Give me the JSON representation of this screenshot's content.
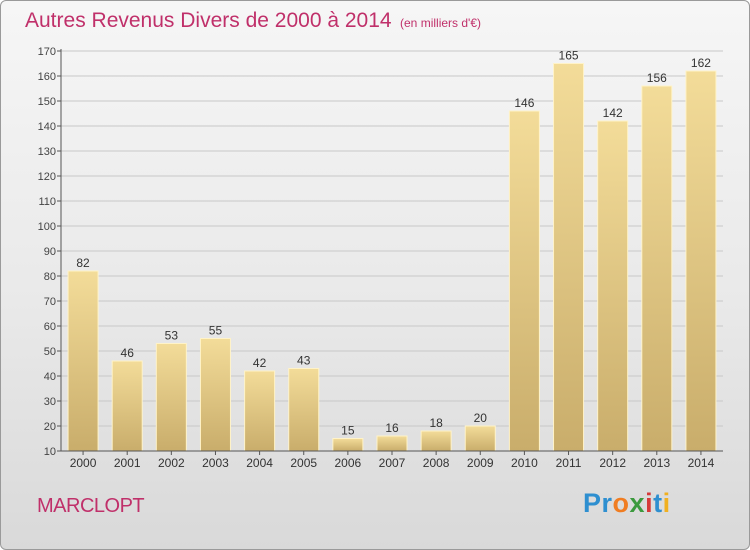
{
  "header": {
    "title": "Autres Revenus Divers de 2000 à 2014",
    "unit": "(en milliers d'€)"
  },
  "footer": {
    "city": "MARCLOPT",
    "brand_letters": [
      {
        "ch": "P",
        "color": "#2e8fd0"
      },
      {
        "ch": "r",
        "color": "#2e8fd0"
      },
      {
        "ch": "o",
        "color": "#f07d22"
      },
      {
        "ch": "x",
        "color": "#3c9a3e"
      },
      {
        "ch": "i",
        "color": "#d63a3a"
      },
      {
        "ch": "t",
        "color": "#2e8fd0"
      },
      {
        "ch": "i",
        "color": "#f0b020"
      }
    ]
  },
  "colors": {
    "title": "#c0306a",
    "bar_light": "#f3dc99",
    "bar_dark": "#c9ad6b",
    "grid": "#c8c8c8"
  },
  "chart_data": {
    "type": "bar",
    "title": "Autres Revenus Divers de 2000 à 2014",
    "subtitle": "(en milliers d'€)",
    "categories": [
      "2000",
      "2001",
      "2002",
      "2003",
      "2004",
      "2005",
      "2006",
      "2007",
      "2008",
      "2009",
      "2010",
      "2011",
      "2012",
      "2013",
      "2014"
    ],
    "values": [
      82,
      46,
      53,
      55,
      42,
      43,
      15,
      16,
      18,
      20,
      146,
      165,
      142,
      156,
      162
    ],
    "ylim": [
      10,
      170
    ],
    "yticks": [
      10,
      20,
      30,
      40,
      50,
      60,
      70,
      80,
      90,
      100,
      110,
      120,
      130,
      140,
      150,
      160,
      170
    ],
    "grid": true,
    "data_labels": true
  }
}
